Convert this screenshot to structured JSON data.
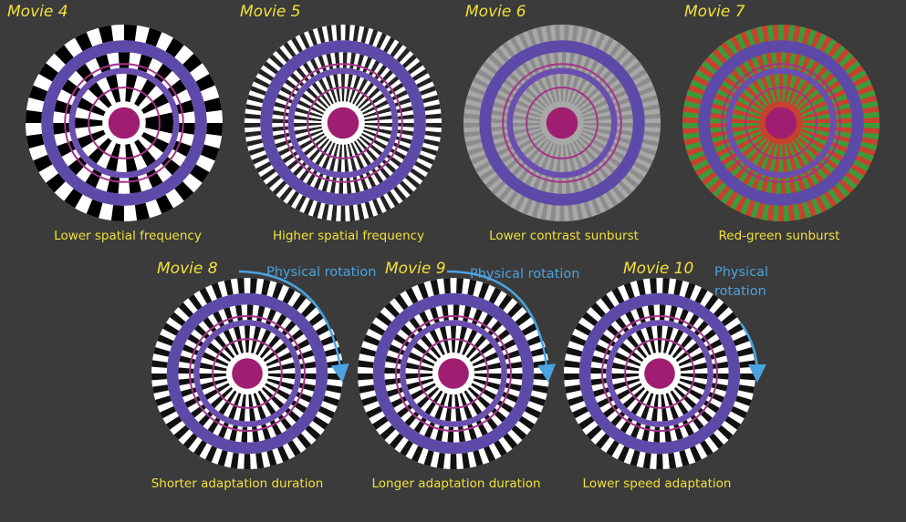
{
  "panels": [
    {
      "title": "Movie 4",
      "caption": "Lower spatial frequency"
    },
    {
      "title": "Movie 5",
      "caption": "Higher spatial frequency"
    },
    {
      "title": "Movie 6",
      "caption": "Lower contrast sunburst"
    },
    {
      "title": "Movie 7",
      "caption": "Red-green sunburst"
    },
    {
      "title": "Movie 8",
      "caption": "Shorter adaptation duration"
    },
    {
      "title": "Movie 9",
      "caption": "Longer adaptation duration"
    },
    {
      "title": "Movie 10",
      "caption": "Lower speed adaptation"
    }
  ],
  "annotations": [
    {
      "lines": [
        "Physical rotation"
      ]
    },
    {
      "lines": [
        "Physical rotation"
      ]
    },
    {
      "lines": [
        "Physical",
        "rotation"
      ]
    }
  ]
}
